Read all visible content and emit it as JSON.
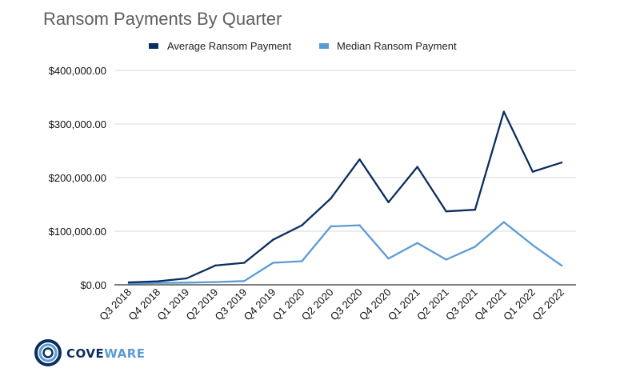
{
  "colors": {
    "average": "#0b2e5e",
    "median": "#5b9bd5",
    "grid": "#d9d9d9",
    "axis": "#333333",
    "title": "#5f5f5f",
    "logo_dark": "#0b2e5e",
    "logo_light": "#5b9bd5"
  },
  "logo": {
    "icon": "coveware-ring-icon",
    "text_part1": "COVE",
    "text_part2": "WARE"
  },
  "chart_data": {
    "type": "line",
    "title": "Ransom Payments By Quarter",
    "xlabel": "",
    "ylabel": "",
    "categories": [
      "Q3 2018",
      "Q4 2018",
      "Q1 2019",
      "Q2 2019",
      "Q3 2019",
      "Q4 2019",
      "Q1 2020",
      "Q2 2020",
      "Q3 2020",
      "Q4 2020",
      "Q1 2021",
      "Q2 2021",
      "Q3 2021",
      "Q4 2021",
      "Q1 2022",
      "Q2 2022"
    ],
    "ylim": [
      0,
      400000
    ],
    "yticks": [
      0,
      100000,
      200000,
      300000,
      400000
    ],
    "ytick_labels": [
      "$0.00",
      "$100,000.00",
      "$200,000.00",
      "$300,000.00",
      "$400,000.00"
    ],
    "grid": true,
    "legend_position": "top-center",
    "series": [
      {
        "name": "Average Ransom Payment",
        "color": "#0b2e5e",
        "values": [
          4500,
          6500,
          12000,
          36000,
          41000,
          84000,
          111000,
          161000,
          234000,
          154000,
          220000,
          137000,
          140000,
          323000,
          211000,
          228000
        ]
      },
      {
        "name": "Median Ransom Payment",
        "color": "#5b9bd5",
        "values": [
          2500,
          3500,
          4000,
          5000,
          7000,
          41000,
          44000,
          109000,
          111000,
          49000,
          78000,
          47000,
          71000,
          117000,
          74000,
          36000
        ]
      }
    ]
  }
}
